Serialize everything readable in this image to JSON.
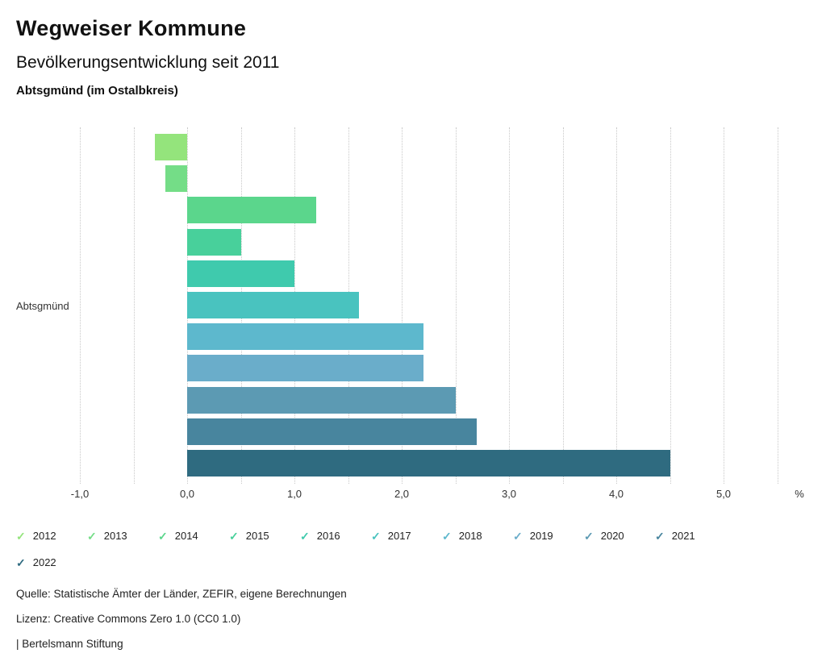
{
  "header": {
    "title": "Wegweiser Kommune",
    "subtitle": "Bevölkerungsentwicklung seit 2011",
    "location": "Abtsgmünd (im Ostalbkreis)"
  },
  "chart_data": {
    "type": "bar",
    "orientation": "horizontal",
    "title": "Bevölkerungsentwicklung seit 2011",
    "subtitle": "Abtsgmünd (im Ostalbkreis)",
    "group_label": "Abtsgmünd",
    "unit": "%",
    "xlim": [
      -1.0,
      5.5
    ],
    "grid": true,
    "gridlines": [
      -1.0,
      -0.5,
      0,
      0.5,
      1.0,
      1.5,
      2.0,
      2.5,
      3.0,
      3.5,
      4.0,
      4.5,
      5.0,
      5.5
    ],
    "ticks": [
      {
        "value": -1.0,
        "label": "-1,0"
      },
      {
        "value": 0.0,
        "label": "0,0"
      },
      {
        "value": 1.0,
        "label": "1,0"
      },
      {
        "value": 2.0,
        "label": "2,0"
      },
      {
        "value": 3.0,
        "label": "3,0"
      },
      {
        "value": 4.0,
        "label": "4,0"
      },
      {
        "value": 5.0,
        "label": "5,0"
      }
    ],
    "series": [
      {
        "name": "2012",
        "value": -0.3,
        "color": "#94e47c"
      },
      {
        "name": "2013",
        "value": -0.2,
        "color": "#74dd87"
      },
      {
        "name": "2014",
        "value": 1.2,
        "color": "#5bd68c"
      },
      {
        "name": "2015",
        "value": 0.5,
        "color": "#48d09b"
      },
      {
        "name": "2016",
        "value": 1.0,
        "color": "#3fcaad"
      },
      {
        "name": "2017",
        "value": 1.6,
        "color": "#49c3bf"
      },
      {
        "name": "2018",
        "value": 2.2,
        "color": "#5db8cd"
      },
      {
        "name": "2019",
        "value": 2.2,
        "color": "#6aadca"
      },
      {
        "name": "2020",
        "value": 2.5,
        "color": "#5c9ab3"
      },
      {
        "name": "2021",
        "value": 2.7,
        "color": "#48859e"
      },
      {
        "name": "2022",
        "value": 4.5,
        "color": "#2f6b80"
      }
    ]
  },
  "legend": {
    "check_icon": "✓",
    "items": [
      {
        "label": "2012",
        "color": "#94e47c"
      },
      {
        "label": "2013",
        "color": "#74dd87"
      },
      {
        "label": "2014",
        "color": "#5bd68c"
      },
      {
        "label": "2015",
        "color": "#48d09b"
      },
      {
        "label": "2016",
        "color": "#3fcaad"
      },
      {
        "label": "2017",
        "color": "#49c3bf"
      },
      {
        "label": "2018",
        "color": "#5db8cd"
      },
      {
        "label": "2019",
        "color": "#6aadca"
      },
      {
        "label": "2020",
        "color": "#5c9ab3"
      },
      {
        "label": "2021",
        "color": "#48859e"
      },
      {
        "label": "2022",
        "color": "#2f6b80"
      }
    ]
  },
  "footer": {
    "source": "Quelle: Statistische Ämter der Länder, ZEFIR, eigene Berechnungen",
    "license": "Lizenz: Creative Commons Zero 1.0 (CC0 1.0)",
    "attribution": "| Bertelsmann Stiftung"
  }
}
